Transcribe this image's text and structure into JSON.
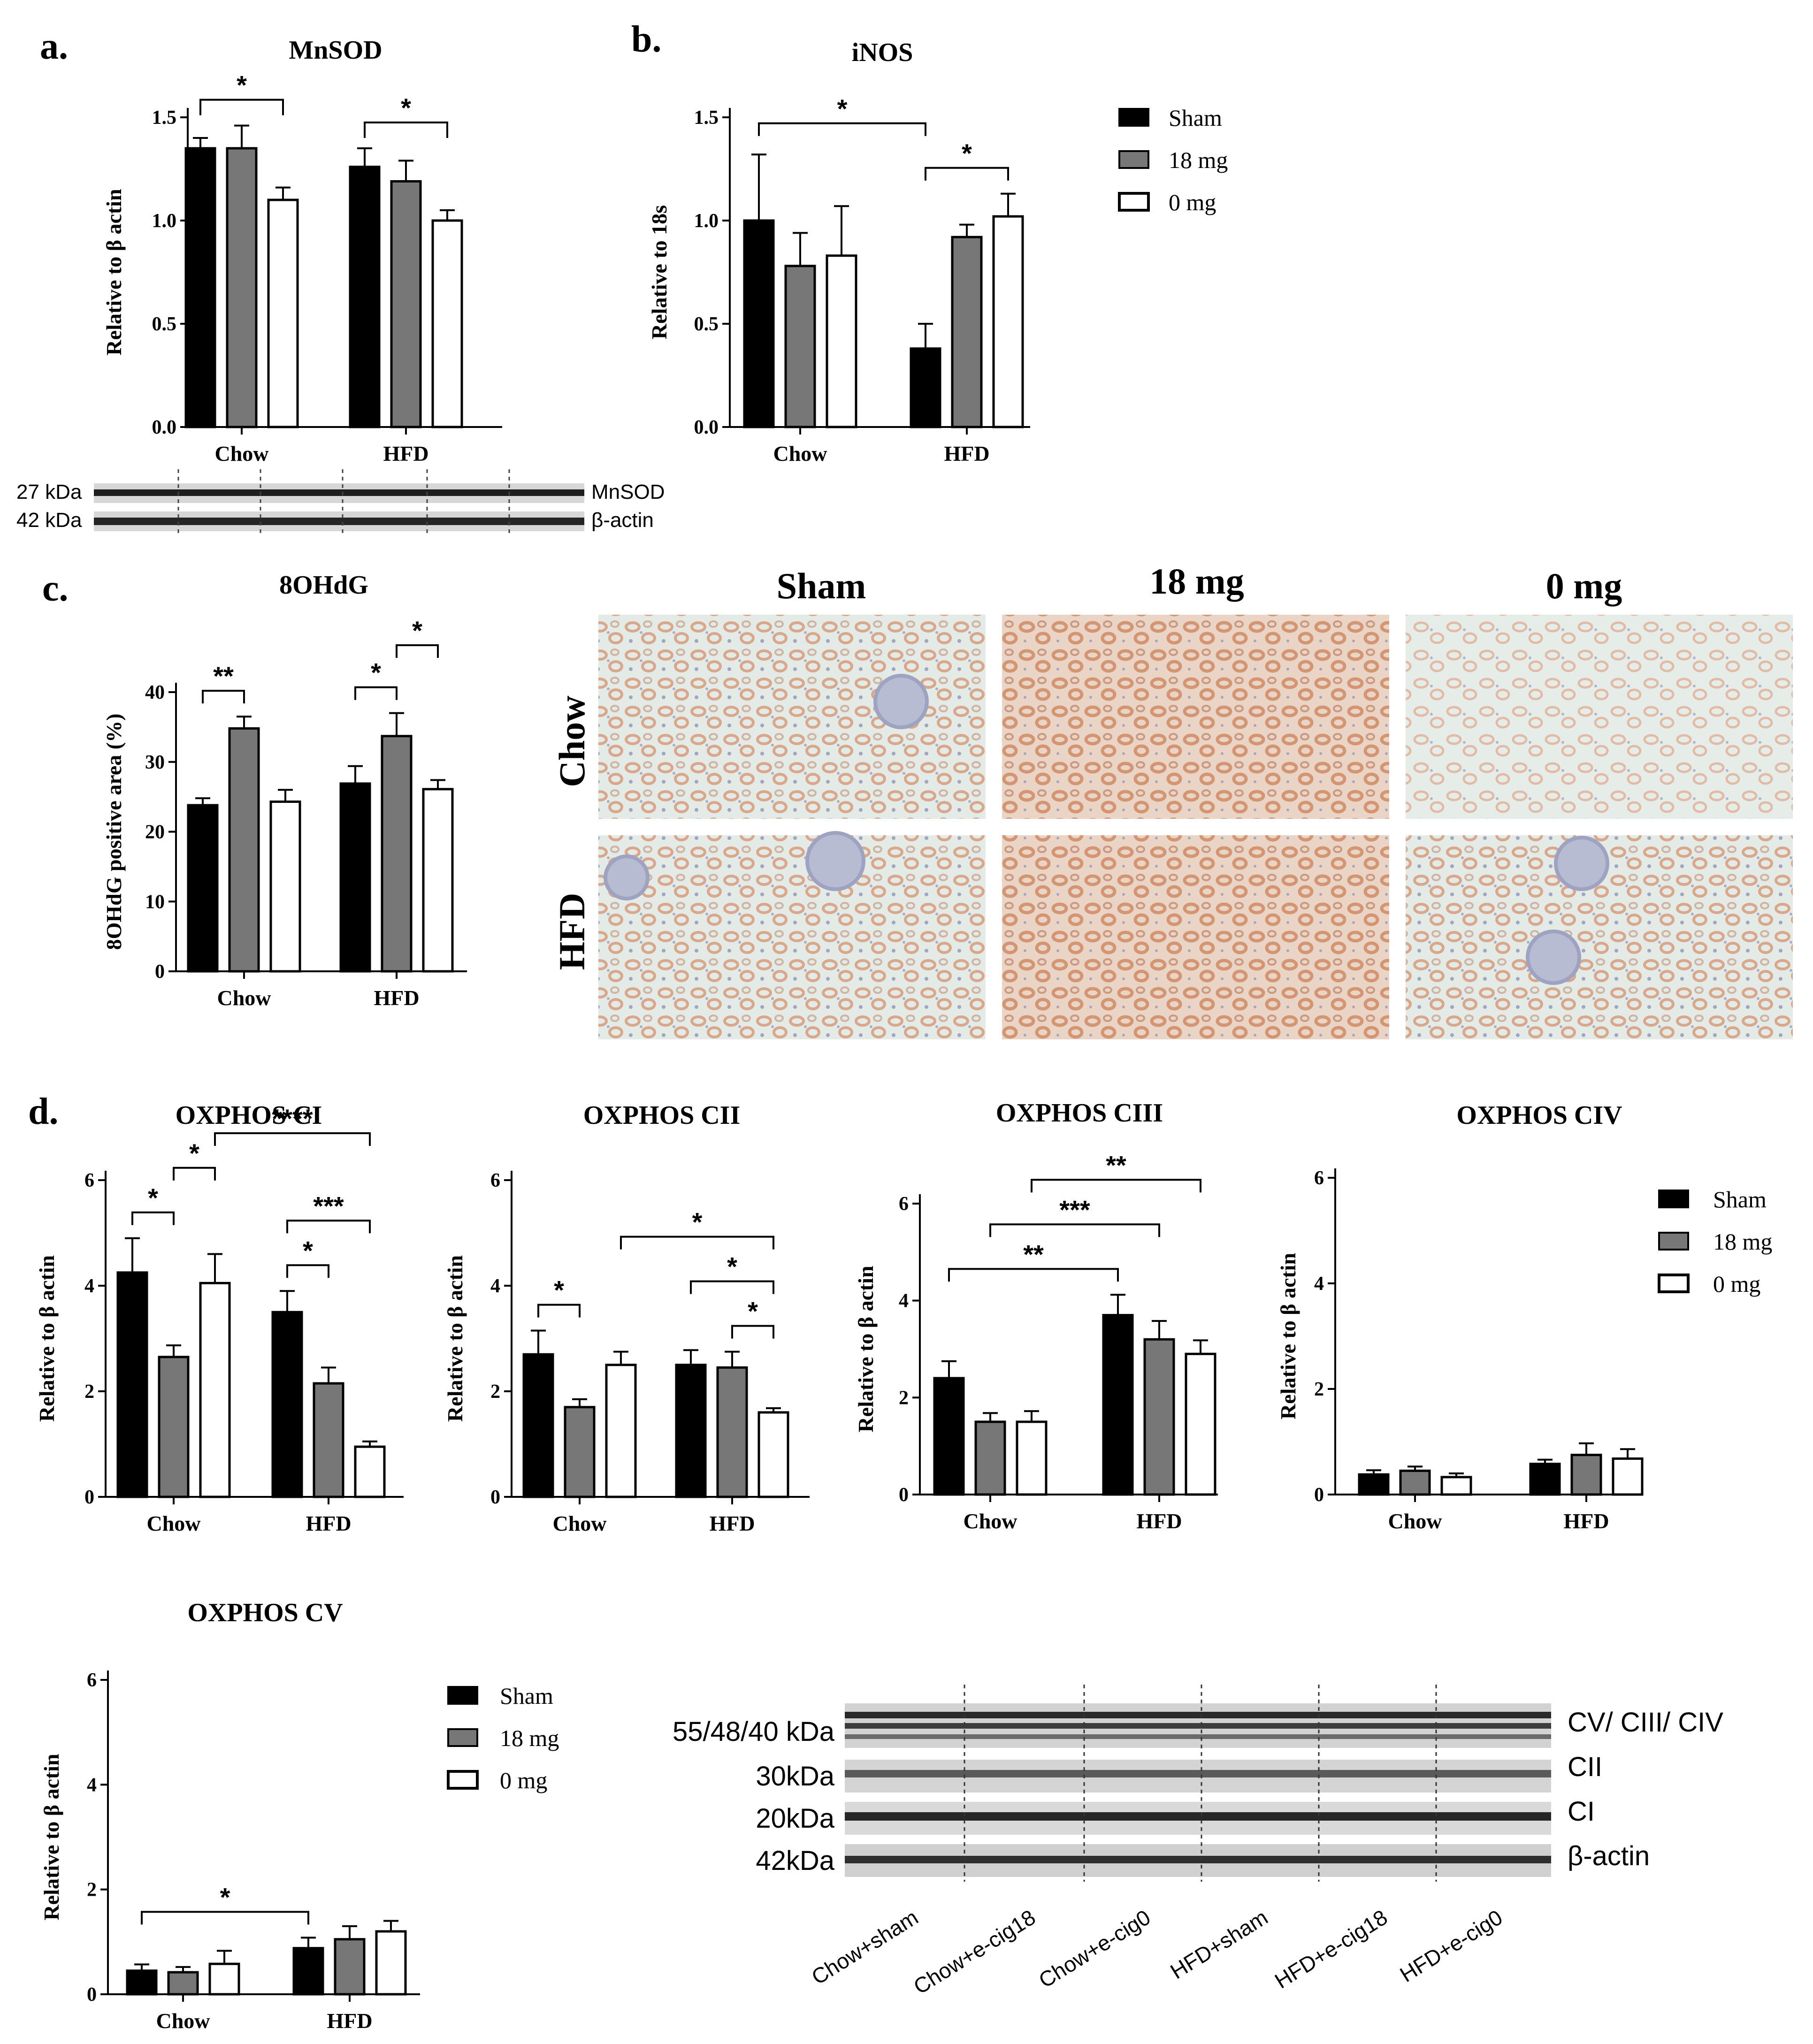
{
  "panel_labels": {
    "a": "a.",
    "b": "b.",
    "c": "c.",
    "d": "d."
  },
  "colors": {
    "sham": "#000000",
    "mg18": "#777777",
    "mg0": "#ffffff",
    "stain": "#e3a88a",
    "tissue_bg": "#dfe7e2"
  },
  "legend": {
    "sham": "Sham",
    "mg18": "18 mg",
    "mg0": "0 mg"
  },
  "chart_data": [
    {
      "id": "mnsod",
      "type": "bar",
      "title": "MnSOD",
      "ylabel": "Relative to β actin",
      "categories": [
        "Chow",
        "HFD"
      ],
      "ylim": [
        0,
        1.5
      ],
      "yticks": [
        "0.0",
        "0.5",
        "1.0",
        "1.5"
      ],
      "series": [
        {
          "name": "Sham",
          "values": [
            1.35,
            1.26
          ],
          "errors": [
            0.05,
            0.09
          ]
        },
        {
          "name": "18 mg",
          "values": [
            1.35,
            1.19
          ],
          "errors": [
            0.11,
            0.1
          ]
        },
        {
          "name": "0 mg",
          "values": [
            1.1,
            1.0
          ],
          "errors": [
            0.06,
            0.05
          ]
        }
      ],
      "significance": [
        {
          "from": [
            0,
            0
          ],
          "to": [
            0,
            2
          ],
          "label": "*"
        },
        {
          "from": [
            1,
            0
          ],
          "to": [
            1,
            2
          ],
          "label": "*"
        }
      ]
    },
    {
      "id": "inos",
      "type": "bar",
      "title": "iNOS",
      "ylabel": "Relative to 18s",
      "categories": [
        "Chow",
        "HFD"
      ],
      "ylim": [
        0,
        1.5
      ],
      "yticks": [
        "0.0",
        "0.5",
        "1.0",
        "1.5"
      ],
      "series": [
        {
          "name": "Sham",
          "values": [
            1.0,
            0.38
          ],
          "errors": [
            0.32,
            0.12
          ]
        },
        {
          "name": "18 mg",
          "values": [
            0.78,
            0.92
          ],
          "errors": [
            0.16,
            0.06
          ]
        },
        {
          "name": "0 mg",
          "values": [
            0.83,
            1.02
          ],
          "errors": [
            0.24,
            0.11
          ]
        }
      ],
      "significance": [
        {
          "from": [
            0,
            0
          ],
          "to": [
            1,
            0
          ],
          "label": "*"
        },
        {
          "from": [
            1,
            0
          ],
          "to": [
            1,
            2
          ],
          "label": "*"
        }
      ]
    },
    {
      "id": "ohdg",
      "type": "bar",
      "title": "8OHdG",
      "ylabel": "8OHdG positive area (%)",
      "categories": [
        "Chow",
        "HFD"
      ],
      "ylim": [
        0,
        40
      ],
      "yticks": [
        "0",
        "10",
        "20",
        "30",
        "40"
      ],
      "series": [
        {
          "name": "Sham",
          "values": [
            23.8,
            26.9
          ],
          "errors": [
            1.0,
            2.5
          ]
        },
        {
          "name": "18 mg",
          "values": [
            34.8,
            33.7
          ],
          "errors": [
            1.7,
            3.3
          ]
        },
        {
          "name": "0 mg",
          "values": [
            24.3,
            26.1
          ],
          "errors": [
            1.7,
            1.3
          ]
        }
      ],
      "significance": [
        {
          "from": [
            0,
            0
          ],
          "to": [
            0,
            1
          ],
          "label": "**"
        },
        {
          "from": [
            1,
            0
          ],
          "to": [
            1,
            1
          ],
          "label": "*"
        },
        {
          "from": [
            1,
            1
          ],
          "to": [
            1,
            2
          ],
          "label": "*"
        }
      ]
    },
    {
      "id": "ci",
      "type": "bar",
      "title": "OXPHOS CI",
      "ylabel": "Relative to β actin",
      "categories": [
        "Chow",
        "HFD"
      ],
      "ylim": [
        0,
        6
      ],
      "yticks": [
        "0",
        "2",
        "4",
        "6"
      ],
      "series": [
        {
          "name": "Sham",
          "values": [
            4.25,
            3.5
          ],
          "errors": [
            0.65,
            0.4
          ]
        },
        {
          "name": "18 mg",
          "values": [
            2.65,
            2.15
          ],
          "errors": [
            0.22,
            0.3
          ]
        },
        {
          "name": "0 mg",
          "values": [
            4.05,
            0.95
          ],
          "errors": [
            0.55,
            0.1
          ]
        }
      ],
      "significance": [
        {
          "from": [
            0,
            0
          ],
          "to": [
            0,
            1
          ],
          "label": "*"
        },
        {
          "from": [
            0,
            1
          ],
          "to": [
            0,
            2
          ],
          "label": "*"
        },
        {
          "from": [
            0,
            2
          ],
          "to": [
            1,
            2
          ],
          "label": "****"
        },
        {
          "from": [
            1,
            0
          ],
          "to": [
            1,
            2
          ],
          "label": "***"
        },
        {
          "from": [
            1,
            0
          ],
          "to": [
            1,
            1
          ],
          "label": "*"
        }
      ]
    },
    {
      "id": "cii",
      "type": "bar",
      "title": "OXPHOS CII",
      "ylabel": "Relative to β actin",
      "categories": [
        "Chow",
        "HFD"
      ],
      "ylim": [
        0,
        6
      ],
      "yticks": [
        "0",
        "2",
        "4",
        "6"
      ],
      "series": [
        {
          "name": "Sham",
          "values": [
            2.7,
            2.5
          ],
          "errors": [
            0.45,
            0.28
          ]
        },
        {
          "name": "18 mg",
          "values": [
            1.7,
            2.45
          ],
          "errors": [
            0.15,
            0.3
          ]
        },
        {
          "name": "0 mg",
          "values": [
            2.5,
            1.6
          ],
          "errors": [
            0.25,
            0.08
          ]
        }
      ],
      "significance": [
        {
          "from": [
            0,
            0
          ],
          "to": [
            0,
            1
          ],
          "label": "*"
        },
        {
          "from": [
            0,
            2
          ],
          "to": [
            1,
            2
          ],
          "label": "*"
        },
        {
          "from": [
            1,
            0
          ],
          "to": [
            1,
            2
          ],
          "label": "*"
        },
        {
          "from": [
            1,
            1
          ],
          "to": [
            1,
            2
          ],
          "label": "*"
        }
      ]
    },
    {
      "id": "ciii",
      "type": "bar",
      "title": "OXPHOS CIII",
      "ylabel": "Relative to β actin",
      "categories": [
        "Chow",
        "HFD"
      ],
      "ylim": [
        0,
        6
      ],
      "yticks": [
        "0",
        "2",
        "4",
        "6"
      ],
      "series": [
        {
          "name": "Sham",
          "values": [
            2.4,
            3.7
          ],
          "errors": [
            0.35,
            0.42
          ]
        },
        {
          "name": "18 mg",
          "values": [
            1.5,
            3.2
          ],
          "errors": [
            0.18,
            0.38
          ]
        },
        {
          "name": "0 mg",
          "values": [
            1.5,
            2.9
          ],
          "errors": [
            0.22,
            0.28
          ]
        }
      ],
      "significance": [
        {
          "from": [
            0,
            0
          ],
          "to": [
            1,
            0
          ],
          "label": "**"
        },
        {
          "from": [
            0,
            1
          ],
          "to": [
            1,
            1
          ],
          "label": "***"
        },
        {
          "from": [
            0,
            2
          ],
          "to": [
            1,
            2
          ],
          "label": "**"
        }
      ]
    },
    {
      "id": "civ",
      "type": "bar",
      "title": "OXPHOS CIV",
      "ylabel": "Relative to β actin",
      "categories": [
        "Chow",
        "HFD"
      ],
      "ylim": [
        0,
        6
      ],
      "yticks": [
        "0",
        "2",
        "4",
        "6"
      ],
      "series": [
        {
          "name": "Sham",
          "values": [
            0.38,
            0.58
          ],
          "errors": [
            0.08,
            0.08
          ]
        },
        {
          "name": "18 mg",
          "values": [
            0.45,
            0.75
          ],
          "errors": [
            0.08,
            0.22
          ]
        },
        {
          "name": "0 mg",
          "values": [
            0.33,
            0.68
          ],
          "errors": [
            0.07,
            0.18
          ]
        }
      ],
      "significance": []
    },
    {
      "id": "cv",
      "type": "bar",
      "title": "OXPHOS CV",
      "ylabel": "Relative to β actin",
      "categories": [
        "Chow",
        "HFD"
      ],
      "ylim": [
        0,
        6
      ],
      "yticks": [
        "0",
        "2",
        "4",
        "6"
      ],
      "series": [
        {
          "name": "Sham",
          "values": [
            0.45,
            0.88
          ],
          "errors": [
            0.12,
            0.2
          ]
        },
        {
          "name": "18 mg",
          "values": [
            0.42,
            1.05
          ],
          "errors": [
            0.1,
            0.25
          ]
        },
        {
          "name": "0 mg",
          "values": [
            0.58,
            1.2
          ],
          "errors": [
            0.25,
            0.2
          ]
        }
      ],
      "significance": [
        {
          "from": [
            0,
            0
          ],
          "to": [
            1,
            0
          ],
          "label": "*"
        }
      ]
    }
  ],
  "blot_a": {
    "rows": [
      {
        "kda": "27 kDa",
        "protein": "MnSOD"
      },
      {
        "kda": "42 kDa",
        "protein": "β-actin"
      }
    ]
  },
  "micrographs": {
    "columns": [
      "Sham",
      "18 mg",
      "0 mg"
    ],
    "rows": [
      "Chow",
      "HFD"
    ]
  },
  "blot_d": {
    "rows": [
      {
        "kda": "55/48/40 kDa",
        "protein": "CV/ CIII/ CIV"
      },
      {
        "kda": "30kDa",
        "protein": "CII"
      },
      {
        "kda": "20kDa",
        "protein": "CI"
      },
      {
        "kda": "42kDa",
        "protein": "β-actin"
      }
    ],
    "lanes": [
      "Chow+sham",
      "Chow+e-cig18",
      "Chow+e-cig0",
      "HFD+sham",
      "HFD+e-cig18",
      "HFD+e-cig0"
    ]
  }
}
